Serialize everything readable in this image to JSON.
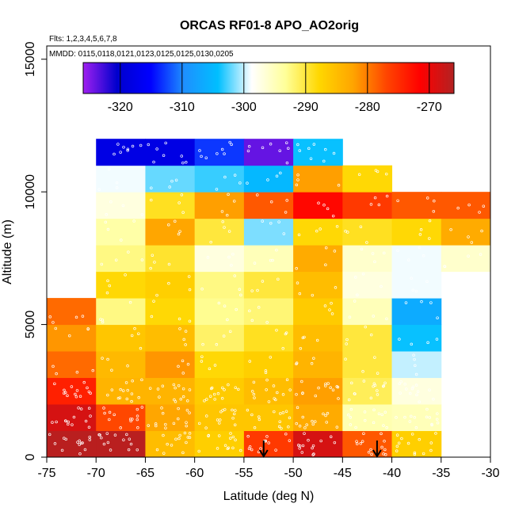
{
  "chart_data": {
    "type": "heatmap",
    "title": "ORCAS RF01-8 APO_AO2orig",
    "flights_note": "Flts: 1,2,3,4,5,6,7,8",
    "dates_note": "MMDD: 0115,0118,0121,0123,0125,0125,0130,0205",
    "xlabel": "Latitude (deg N)",
    "ylabel": "Altitude (m)",
    "xlim": [
      -75,
      -30
    ],
    "ylim": [
      0,
      15500
    ],
    "x_ticks": [
      -75,
      -70,
      -65,
      -60,
      -55,
      -50,
      -45,
      -40,
      -35,
      -30
    ],
    "x_tick_labels": [
      "-75",
      "-70",
      "-65",
      "-60",
      "-55",
      "-50",
      "-45",
      "-40",
      "-35",
      "-30"
    ],
    "y_ticks": [
      0,
      5000,
      10000,
      15000
    ],
    "y_tick_labels": [
      "0",
      "5000",
      "10000",
      "15000"
    ],
    "colorbar": {
      "range": [
        -326,
        -266
      ],
      "ticks": [
        -320,
        -310,
        -300,
        -290,
        -280,
        -270
      ],
      "tick_labels": [
        "-320",
        "-310",
        "-300",
        "-290",
        "-280",
        "-270"
      ],
      "colors": [
        "#a020f0",
        "#0000cd",
        "#0000ff",
        "#1e90ff",
        "#00bfff",
        "#ffffff",
        "#ffff99",
        "#ffd700",
        "#ffa500",
        "#ff4500",
        "#ff0000",
        "#b22222"
      ]
    },
    "lat_bin_width": 5,
    "alt_bin_height": 1000,
    "cells": [
      {
        "lat": -75,
        "alt": 0,
        "v": -266.5
      },
      {
        "lat": -75,
        "alt": 1000,
        "v": -268.5
      },
      {
        "lat": -75,
        "alt": 2000,
        "v": -274
      },
      {
        "lat": -75,
        "alt": 3000,
        "v": -279
      },
      {
        "lat": -75,
        "alt": 4000,
        "v": -281.5
      },
      {
        "lat": -75,
        "alt": 5000,
        "v": -279
      },
      {
        "lat": -70,
        "alt": 0,
        "v": -266.5
      },
      {
        "lat": -70,
        "alt": 1000,
        "v": -277
      },
      {
        "lat": -70,
        "alt": 2000,
        "v": -284
      },
      {
        "lat": -70,
        "alt": 3000,
        "v": -284.5
      },
      {
        "lat": -70,
        "alt": 4000,
        "v": -286
      },
      {
        "lat": -70,
        "alt": 5000,
        "v": -292.5
      },
      {
        "lat": -70,
        "alt": 6000,
        "v": -288
      },
      {
        "lat": -70,
        "alt": 7000,
        "v": -292.5
      },
      {
        "lat": -70,
        "alt": 8000,
        "v": -294
      },
      {
        "lat": -70,
        "alt": 9000,
        "v": -297
      },
      {
        "lat": -70,
        "alt": 10000,
        "v": -299
      },
      {
        "lat": -70,
        "alt": 11000,
        "v": -318
      },
      {
        "lat": -65,
        "alt": 0,
        "v": -285
      },
      {
        "lat": -65,
        "alt": 1000,
        "v": -282.5
      },
      {
        "lat": -65,
        "alt": 2000,
        "v": -284
      },
      {
        "lat": -65,
        "alt": 3000,
        "v": -281.5
      },
      {
        "lat": -65,
        "alt": 4000,
        "v": -285
      },
      {
        "lat": -65,
        "alt": 5000,
        "v": -288
      },
      {
        "lat": -65,
        "alt": 6000,
        "v": -287
      },
      {
        "lat": -65,
        "alt": 7000,
        "v": -289.5
      },
      {
        "lat": -65,
        "alt": 8000,
        "v": -282.5
      },
      {
        "lat": -65,
        "alt": 9000,
        "v": -289
      },
      {
        "lat": -65,
        "alt": 10000,
        "v": -302
      },
      {
        "lat": -65,
        "alt": 11000,
        "v": -318
      },
      {
        "lat": -60,
        "alt": 0,
        "v": -287
      },
      {
        "lat": -60,
        "alt": 1000,
        "v": -286
      },
      {
        "lat": -60,
        "alt": 2000,
        "v": -286.5
      },
      {
        "lat": -60,
        "alt": 3000,
        "v": -288
      },
      {
        "lat": -60,
        "alt": 4000,
        "v": -291.5
      },
      {
        "lat": -60,
        "alt": 5000,
        "v": -293
      },
      {
        "lat": -60,
        "alt": 6000,
        "v": -292.5
      },
      {
        "lat": -60,
        "alt": 7000,
        "v": -297
      },
      {
        "lat": -60,
        "alt": 8000,
        "v": -290
      },
      {
        "lat": -60,
        "alt": 9000,
        "v": -282
      },
      {
        "lat": -60,
        "alt": 10000,
        "v": -303
      },
      {
        "lat": -60,
        "alt": 11000,
        "v": -313
      },
      {
        "lat": -55,
        "alt": 0,
        "v": -276
      },
      {
        "lat": -55,
        "alt": 1000,
        "v": -286
      },
      {
        "lat": -55,
        "alt": 2000,
        "v": -285
      },
      {
        "lat": -55,
        "alt": 3000,
        "v": -287
      },
      {
        "lat": -55,
        "alt": 4000,
        "v": -289
      },
      {
        "lat": -55,
        "alt": 5000,
        "v": -292
      },
      {
        "lat": -55,
        "alt": 6000,
        "v": -290
      },
      {
        "lat": -55,
        "alt": 7000,
        "v": -295
      },
      {
        "lat": -55,
        "alt": 8000,
        "v": -301.5
      },
      {
        "lat": -55,
        "alt": 9000,
        "v": -278
      },
      {
        "lat": -55,
        "alt": 10000,
        "v": -305
      },
      {
        "lat": -55,
        "alt": 11000,
        "v": -324
      },
      {
        "lat": -50,
        "alt": 0,
        "v": -268.5
      },
      {
        "lat": -50,
        "alt": 1000,
        "v": -283
      },
      {
        "lat": -50,
        "alt": 2000,
        "v": -282
      },
      {
        "lat": -50,
        "alt": 3000,
        "v": -284
      },
      {
        "lat": -50,
        "alt": 4000,
        "v": -285
      },
      {
        "lat": -50,
        "alt": 5000,
        "v": -286.5
      },
      {
        "lat": -50,
        "alt": 6000,
        "v": -285
      },
      {
        "lat": -50,
        "alt": 7000,
        "v": -283
      },
      {
        "lat": -50,
        "alt": 8000,
        "v": -288
      },
      {
        "lat": -50,
        "alt": 9000,
        "v": -272
      },
      {
        "lat": -50,
        "alt": 10000,
        "v": -282
      },
      {
        "lat": -50,
        "alt": 11000,
        "v": -304
      },
      {
        "lat": -45,
        "alt": 0,
        "v": -278
      },
      {
        "lat": -45,
        "alt": 1000,
        "v": -294.5
      },
      {
        "lat": -45,
        "alt": 2000,
        "v": -291
      },
      {
        "lat": -45,
        "alt": 3000,
        "v": -290
      },
      {
        "lat": -45,
        "alt": 4000,
        "v": -290
      },
      {
        "lat": -45,
        "alt": 5000,
        "v": -295
      },
      {
        "lat": -45,
        "alt": 6000,
        "v": -297
      },
      {
        "lat": -45,
        "alt": 7000,
        "v": -296
      },
      {
        "lat": -45,
        "alt": 8000,
        "v": -289
      },
      {
        "lat": -45,
        "alt": 9000,
        "v": -276
      },
      {
        "lat": -45,
        "alt": 10000,
        "v": -288
      },
      {
        "lat": -40,
        "alt": 0,
        "v": -287
      },
      {
        "lat": -40,
        "alt": 1000,
        "v": -295
      },
      {
        "lat": -40,
        "alt": 2000,
        "v": -297
      },
      {
        "lat": -40,
        "alt": 3000,
        "v": -300
      },
      {
        "lat": -40,
        "alt": 4000,
        "v": -304
      },
      {
        "lat": -40,
        "alt": 5000,
        "v": -306.5
      },
      {
        "lat": -40,
        "alt": 6000,
        "v": -299
      },
      {
        "lat": -40,
        "alt": 7000,
        "v": -299
      },
      {
        "lat": -40,
        "alt": 8000,
        "v": -288
      },
      {
        "lat": -40,
        "alt": 9000,
        "v": -278
      },
      {
        "lat": -35,
        "alt": 7000,
        "v": -296
      },
      {
        "lat": -35,
        "alt": 8000,
        "v": -283
      },
      {
        "lat": -35,
        "alt": 9000,
        "v": -278
      }
    ],
    "arrows_at_lat": [
      -53,
      -41.5
    ],
    "observation_markers": "small white open circles marking individual sample locations"
  }
}
